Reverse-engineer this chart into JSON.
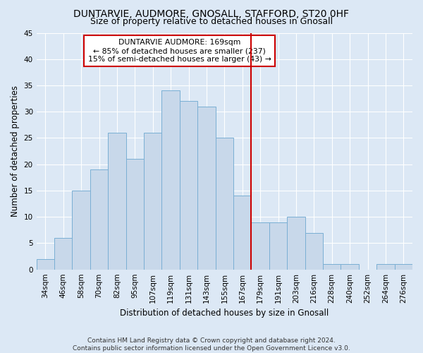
{
  "title": "DUNTARVIE, AUDMORE, GNOSALL, STAFFORD, ST20 0HF",
  "subtitle": "Size of property relative to detached houses in Gnosall",
  "xlabel": "Distribution of detached houses by size in Gnosall",
  "ylabel": "Number of detached properties",
  "footer1": "Contains HM Land Registry data © Crown copyright and database right 2024.",
  "footer2": "Contains public sector information licensed under the Open Government Licence v3.0.",
  "bar_labels": [
    "34sqm",
    "46sqm",
    "58sqm",
    "70sqm",
    "82sqm",
    "95sqm",
    "107sqm",
    "119sqm",
    "131sqm",
    "143sqm",
    "155sqm",
    "167sqm",
    "179sqm",
    "191sqm",
    "203sqm",
    "216sqm",
    "228sqm",
    "240sqm",
    "252sqm",
    "264sqm",
    "276sqm"
  ],
  "bar_values": [
    2,
    6,
    15,
    19,
    26,
    21,
    26,
    34,
    32,
    31,
    25,
    14,
    9,
    9,
    10,
    7,
    1,
    1,
    0,
    1,
    1
  ],
  "bar_color": "#c8d8ea",
  "bar_edgecolor": "#7aafd4",
  "bar_linewidth": 0.7,
  "vline_x_index": 11.5,
  "vline_color": "#cc0000",
  "ylim": [
    0,
    45
  ],
  "yticks": [
    0,
    5,
    10,
    15,
    20,
    25,
    30,
    35,
    40,
    45
  ],
  "annotation_title": "DUNTARVIE AUDMORE: 169sqm",
  "annotation_line1": "← 85% of detached houses are smaller (237)",
  "annotation_line2": "15% of semi-detached houses are larger (43) →",
  "annotation_box_facecolor": "#ffffff",
  "annotation_box_edgecolor": "#cc0000",
  "bg_color": "#dce8f5",
  "grid_color": "#ffffff",
  "title_fontsize": 10,
  "subtitle_fontsize": 9,
  "axis_label_fontsize": 8.5,
  "tick_fontsize": 7.5,
  "footer_fontsize": 6.5
}
